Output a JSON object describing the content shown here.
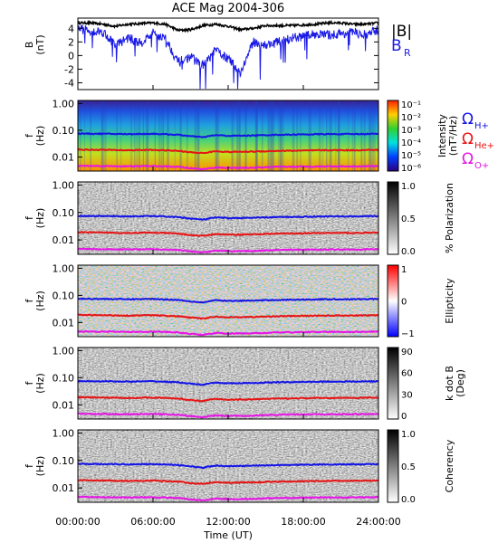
{
  "figure": {
    "title": "ACE Mag 2004-306",
    "xlabel": "Time (UT)",
    "time_ticks": [
      "00:00:00",
      "06:00:00",
      "12:00:00",
      "18:00:00",
      "24:00:00"
    ],
    "time_range_hours": [
      0,
      24
    ],
    "colors": {
      "background": "#ffffff",
      "axes": "#000000",
      "B_magnitude": "#000000",
      "B_radial": "#1a1ae6",
      "H_plus": "#1414e6",
      "He_plus": "#e61414",
      "O_plus": "#e614e6"
    }
  },
  "chart_data": [
    {
      "type": "line",
      "panel": "field",
      "ylabel": "B",
      "yunit": "(nT)",
      "yticks": [
        "4",
        "2",
        "0",
        "-2",
        "-4"
      ],
      "ylim": [
        -5,
        5.5
      ],
      "legend": [
        "|B|",
        "B_R"
      ],
      "legend_placement": "right",
      "series": [
        {
          "name": "|B|",
          "x": [
            0,
            1,
            2,
            3,
            4,
            5,
            6,
            7,
            8,
            9,
            10,
            11,
            12,
            13,
            14,
            15,
            16,
            17,
            18,
            19,
            20,
            21,
            22,
            23,
            24
          ],
          "y": [
            4.8,
            4.8,
            4.6,
            4.3,
            4.6,
            4.7,
            4.8,
            4.6,
            3.7,
            3.8,
            4.4,
            4.6,
            4.3,
            3.8,
            4.0,
            4.4,
            4.4,
            4.4,
            4.5,
            4.6,
            4.8,
            4.8,
            4.6,
            4.6,
            4.8
          ]
        },
        {
          "name": "B_R",
          "x": [
            0,
            1,
            2,
            3,
            4,
            5,
            6,
            7,
            8,
            9,
            10,
            11,
            12,
            13,
            14,
            15,
            16,
            17,
            18,
            19,
            20,
            21,
            22,
            23,
            24
          ],
          "y": [
            4.0,
            3.6,
            3.5,
            1.5,
            2.6,
            1.8,
            3.3,
            2.5,
            -1.0,
            -0.2,
            -1.5,
            0.8,
            -0.5,
            -2.5,
            2.0,
            1.5,
            2.0,
            2.5,
            2.8,
            3.2,
            3.0,
            3.2,
            3.4,
            3.0,
            3.8
          ]
        }
      ]
    },
    {
      "type": "heatmap",
      "panel": "intensity",
      "ylabel": "f",
      "yunit": "(Hz)",
      "yscale": "log",
      "yticks": [
        "1.00",
        "0.10",
        "0.01"
      ],
      "ylim": [
        0.003,
        1.3
      ],
      "colorbar": {
        "label": "Intensity",
        "unit": "(nT²/Hz)",
        "ticks": [
          "10⁻¹",
          "10⁻²",
          "10⁻³",
          "10⁻⁴",
          "10⁻⁵",
          "10⁻⁶"
        ],
        "scale": "rainbow"
      },
      "overlay_labels": [
        "Ω H+",
        "Ω He+",
        "Ω O+"
      ]
    },
    {
      "type": "heatmap",
      "panel": "polarization",
      "ylabel": "f",
      "yunit": "(Hz)",
      "yscale": "log",
      "yticks": [
        "1.00",
        "0.10",
        "0.01"
      ],
      "ylim": [
        0.003,
        1.3
      ],
      "colorbar": {
        "label": "% Polarization",
        "unit": "",
        "ticks": [
          "1.0",
          "0.5",
          "0.0"
        ],
        "scale": "gray"
      }
    },
    {
      "type": "heatmap",
      "panel": "ellipticity",
      "ylabel": "f",
      "yunit": "(Hz)",
      "yscale": "log",
      "yticks": [
        "1.00",
        "0.10",
        "0.01"
      ],
      "ylim": [
        0.003,
        1.3
      ],
      "colorbar": {
        "label": "Ellipticity",
        "unit": "",
        "ticks": [
          "1",
          "0",
          "−1"
        ],
        "scale": "redblue"
      }
    },
    {
      "type": "heatmap",
      "panel": "kdotb",
      "ylabel": "f",
      "yunit": "(Hz)",
      "yscale": "log",
      "yticks": [
        "1.00",
        "0.10",
        "0.01"
      ],
      "ylim": [
        0.003,
        1.3
      ],
      "colorbar": {
        "label": "k dot B",
        "unit": "(Deg)",
        "ticks": [
          "90",
          "60",
          "30",
          "0"
        ],
        "scale": "gray"
      }
    },
    {
      "type": "heatmap",
      "panel": "coherency",
      "ylabel": "f",
      "yunit": "(Hz)",
      "yscale": "log",
      "yticks": [
        "1.00",
        "0.10",
        "0.01"
      ],
      "ylim": [
        0.003,
        1.3
      ],
      "colorbar": {
        "label": "Coherency",
        "unit": "",
        "ticks": [
          "1.0",
          "0.5",
          "0.0"
        ],
        "scale": "gray"
      }
    }
  ],
  "cyclotron_lines": {
    "x": [
      0,
      2,
      4,
      6,
      8,
      9,
      10,
      11,
      12,
      14,
      16,
      18,
      20,
      22,
      24
    ],
    "H_plus": [
      0.075,
      0.074,
      0.072,
      0.074,
      0.068,
      0.06,
      0.055,
      0.066,
      0.062,
      0.064,
      0.068,
      0.07,
      0.072,
      0.072,
      0.074
    ],
    "He_plus": [
      0.019,
      0.0185,
      0.018,
      0.0185,
      0.017,
      0.015,
      0.014,
      0.0165,
      0.0155,
      0.016,
      0.017,
      0.0175,
      0.018,
      0.018,
      0.0185
    ],
    "O_plus": [
      0.0047,
      0.0046,
      0.0045,
      0.0046,
      0.0043,
      0.0038,
      0.0035,
      0.0041,
      0.0039,
      0.004,
      0.0043,
      0.0044,
      0.0045,
      0.0045,
      0.0046
    ]
  }
}
